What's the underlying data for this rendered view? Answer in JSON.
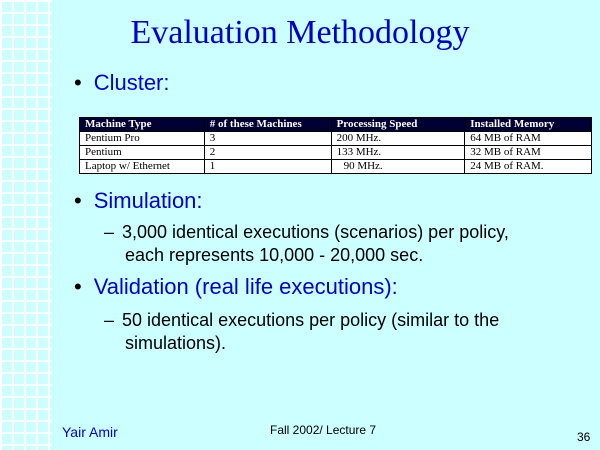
{
  "title": "Evaluation Methodology",
  "bullets": {
    "cluster": "Cluster:",
    "simulation": "Simulation:",
    "validation": "Validation (real life executions):"
  },
  "bullet_symbol": "•",
  "dash_symbol": "–",
  "simulation_sub": [
    "3,000 identical executions (scenarios) per policy,",
    "each represents 10,000 - 20,000 sec."
  ],
  "validation_sub": [
    "50 identical executions per policy (similar to the",
    "simulations)."
  ],
  "table": {
    "headers": [
      "Machine Type",
      "# of these Machines",
      "Processing Speed",
      "Installed Memory"
    ],
    "rows": [
      [
        "Pentium Pro",
        "3",
        "200 MHz.",
        "64 MB of RAM"
      ],
      [
        "Pentium",
        "2",
        "133 MHz.",
        "32 MB of RAM"
      ],
      [
        "Laptop w/ Ethernet",
        "1",
        "90 MHz.",
        "24 MB of RAM."
      ]
    ]
  },
  "footer": {
    "author": "Yair Amir",
    "lecture": "Fall 2002/ Lecture 7",
    "page": "36"
  },
  "colors": {
    "background": "#ccffff",
    "title": "#0000cc",
    "table_header": "#000033"
  }
}
